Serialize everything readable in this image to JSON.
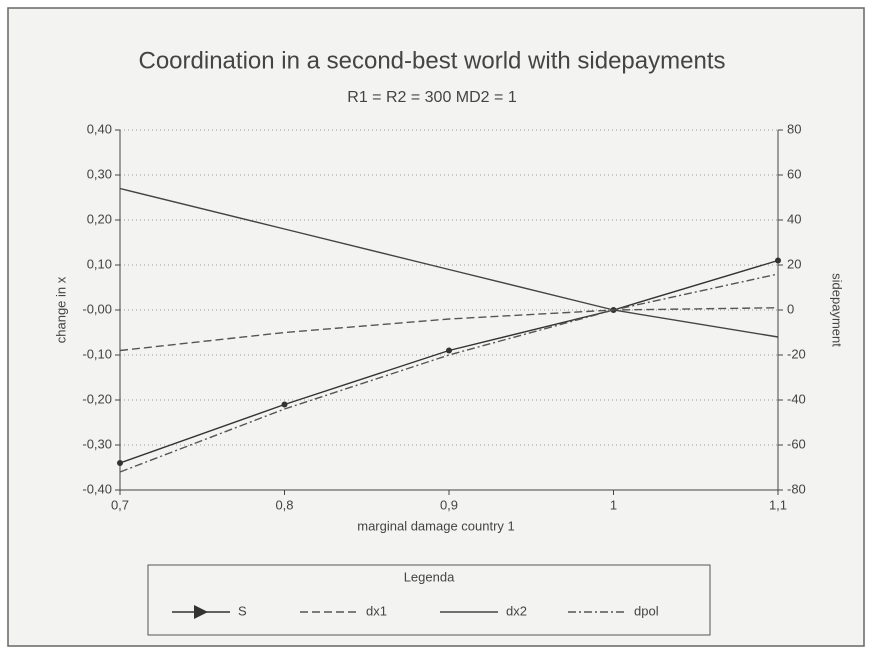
{
  "chart_data": {
    "type": "line",
    "title": "Coordination in a second-best world with sidepayments",
    "subtitle": "R1 = R2 = 300   MD2 = 1",
    "xlabel": "marginal damage country 1",
    "ylabel": "change in x",
    "y2label": "sidepayment",
    "legend_title": "Legenda",
    "legend": "bottom",
    "grid": true,
    "x": [
      0.7,
      0.8,
      0.9,
      1,
      1.1
    ],
    "xlim": [
      0.7,
      1.1
    ],
    "xticks": [
      {
        "value": 0.7,
        "label": "0,7"
      },
      {
        "value": 0.8,
        "label": "0,8"
      },
      {
        "value": 0.9,
        "label": "0,9"
      },
      1,
      {
        "value": 1.1,
        "label": "1,1"
      }
    ],
    "ylim": [
      -0.4,
      0.4
    ],
    "yticks": [
      {
        "value": 0.4,
        "label": "0,40"
      },
      {
        "value": 0.3,
        "label": "0,30"
      },
      {
        "value": 0.2,
        "label": "0,20"
      },
      {
        "value": 0.1,
        "label": "0,10"
      },
      {
        "value": 0,
        "label": "-0,00"
      },
      {
        "value": -0.1,
        "label": "-0,10"
      },
      {
        "value": -0.2,
        "label": "-0,20"
      },
      {
        "value": -0.3,
        "label": "-0,30"
      },
      {
        "value": -0.4,
        "label": "-0,40"
      }
    ],
    "y2lim": [
      -80,
      80
    ],
    "y2ticks": [
      80,
      60,
      40,
      20,
      0,
      -20,
      -40,
      -60,
      -80
    ],
    "series": [
      {
        "name": "S",
        "color": "#333333",
        "axis": "y2",
        "dash": "solid",
        "marker": "circle",
        "values": [
          -68,
          -42,
          -18,
          0,
          22
        ]
      },
      {
        "name": "dx1",
        "color": "#555555",
        "dash": "dashed",
        "values": [
          -0.09,
          -0.05,
          -0.02,
          0,
          0.005
        ]
      },
      {
        "name": "dx2",
        "color": "#444444",
        "dash": "solid",
        "values": [
          0.27,
          0.18,
          0.09,
          0,
          -0.06
        ]
      },
      {
        "name": "dpol",
        "color": "#555555",
        "dash": "dashdot",
        "values": [
          -0.36,
          -0.22,
          -0.1,
          0,
          0.08
        ]
      }
    ]
  }
}
